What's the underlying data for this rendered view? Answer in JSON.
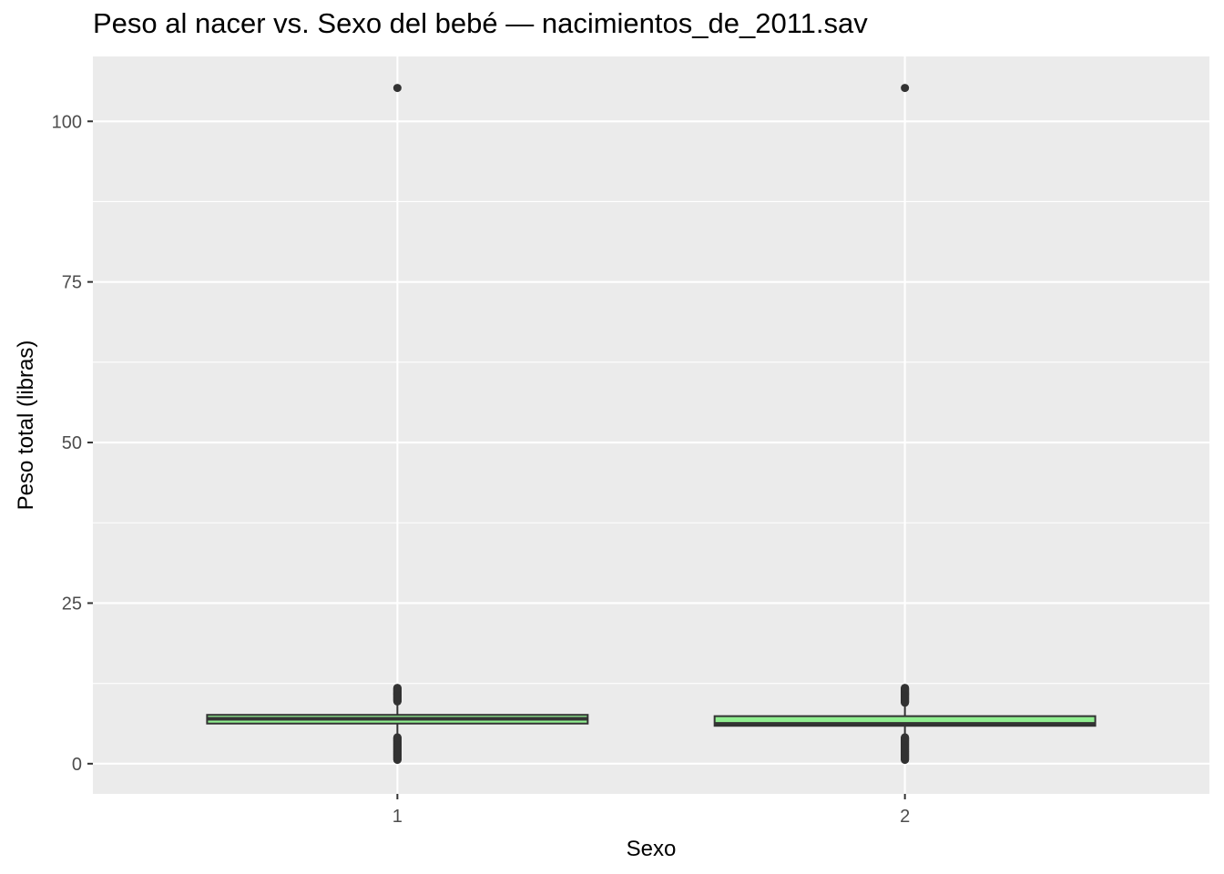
{
  "chart_data": {
    "type": "boxplot",
    "title": "Peso al nacer vs. Sexo del bebé — nacimientos_de_2011.sav",
    "xlabel": "Sexo",
    "ylabel": "Peso total (libras)",
    "categories": [
      "1",
      "2"
    ],
    "yticks": [
      "0",
      "25",
      "50",
      "75",
      "100"
    ],
    "ylim": [
      -4.7,
      110.1
    ],
    "grid": true,
    "background": "#ebebeb",
    "box_fill": "#90ee90",
    "box_stroke": "#333333",
    "boxes": [
      {
        "category": "1",
        "q1": 6.25,
        "median": 7.0,
        "q3": 7.6,
        "whisker_low": 4.2,
        "whisker_high": 9.6,
        "outlier_low_range": [
          0.6,
          4.1
        ],
        "outlier_high_range": [
          9.7,
          11.8
        ],
        "outliers_extreme": [
          105.2
        ]
      },
      {
        "category": "2",
        "q1": 5.9,
        "median": 6.2,
        "q3": 7.4,
        "whisker_low": 4.2,
        "whisker_high": 9.3,
        "outlier_low_range": [
          0.6,
          4.1
        ],
        "outlier_high_range": [
          9.5,
          11.8
        ],
        "outliers_extreme": [
          105.2
        ]
      }
    ]
  }
}
